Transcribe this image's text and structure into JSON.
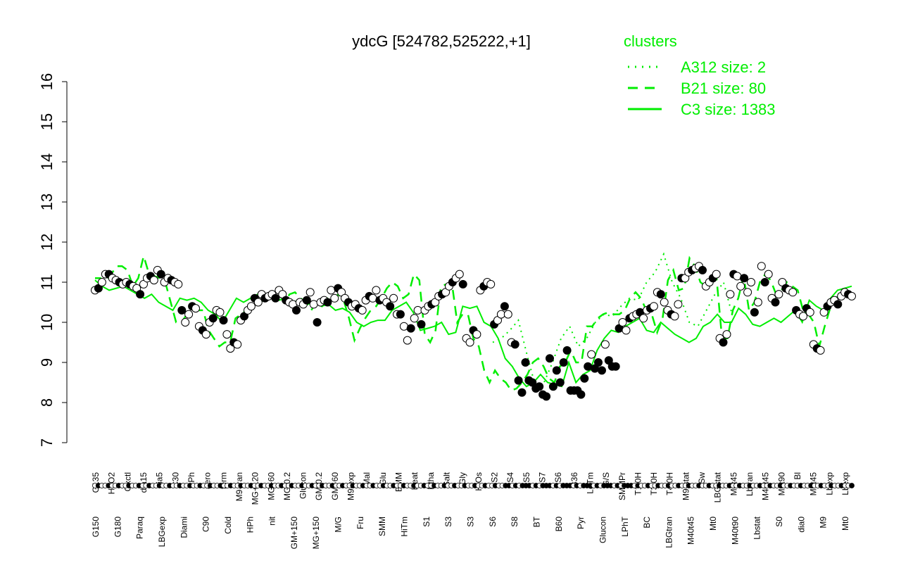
{
  "chart_data": {
    "type": "line",
    "title": "ydcG [524782,525222,+1]",
    "xlabel": "",
    "ylabel": "",
    "ylim": [
      7,
      16
    ],
    "yticks": [
      7,
      8,
      9,
      10,
      11,
      12,
      13,
      14,
      15,
      16
    ],
    "grid": false,
    "legend": {
      "title": "clusters",
      "placement": "top-right",
      "entries": [
        {
          "label": "A312 size: 2",
          "style": "dotted"
        },
        {
          "label": "B21 size: 80",
          "style": "dashed"
        },
        {
          "label": "C3 size: 1383",
          "style": "solid"
        }
      ]
    },
    "colors": {
      "line": "#00ee00",
      "text": "#000000",
      "legend": "#00ee00"
    },
    "x_labels_top": [
      "G135",
      "H2O2",
      "Oxctl",
      "dia15",
      "dia5",
      "C30",
      "LPh",
      "aero",
      "ferm",
      "M9-tran",
      "MG+120",
      "MG+60",
      "MG-0.2",
      "Glucon",
      "GM-0.2",
      "GM+60",
      "M9-exp",
      "Mal",
      "Glu",
      "BMM",
      "Heat",
      "Etha",
      "Salt",
      "Gly",
      "HiOs",
      "S2",
      "S4",
      "S5",
      "S7",
      "S6",
      "B36",
      "LoTm",
      "G/S",
      "SMMPr",
      "T1.0H",
      "T3.0H",
      "T4.0H",
      "M9-stat",
      "Sw",
      "LBGstat",
      "M0t45",
      "Lbtran",
      "M40t45",
      "M0t90",
      "Bl",
      "M0t45",
      "Lbexp",
      "Lbexp"
    ],
    "x_labels_bottom": [
      "G150",
      "G180",
      "Paraq",
      "LBGexp",
      "Diami",
      "C90",
      "Cold",
      "HPh",
      "nit",
      "GM+150",
      "MG+150",
      "M/G",
      "Fru",
      "SMM",
      "HiTm",
      "S1",
      "S3",
      "S3",
      "S6",
      "S8",
      "BT",
      "B60",
      "Pyr",
      "Glucon",
      "LPhT",
      "BC",
      "LBGtran",
      "M40t45",
      "Mt0",
      "M40t90",
      "Lbstat",
      "S0",
      "dia0",
      "M9",
      "Mt0"
    ],
    "point_values": [
      10.8,
      10.85,
      11.0,
      11.2,
      11.2,
      11.1,
      11.05,
      11.0,
      10.95,
      11.0,
      10.95,
      10.9,
      10.85,
      10.7,
      10.95,
      11.1,
      11.15,
      11.05,
      11.3,
      11.2,
      11.0,
      11.1,
      11.05,
      11.0,
      10.95,
      10.3,
      10.0,
      10.2,
      10.4,
      10.35,
      9.9,
      9.8,
      9.7,
      10.0,
      10.1,
      10.3,
      10.25,
      10.05,
      9.7,
      9.35,
      9.5,
      9.45,
      10.05,
      10.15,
      10.3,
      10.4,
      10.6,
      10.5,
      10.7,
      10.6,
      10.65,
      10.7,
      10.6,
      10.8,
      10.7,
      10.55,
      10.5,
      10.45,
      10.3,
      10.5,
      10.45,
      10.55,
      10.75,
      10.45,
      10.0,
      10.5,
      10.55,
      10.5,
      10.8,
      10.6,
      10.85,
      10.75,
      10.6,
      10.5,
      10.4,
      10.45,
      10.35,
      10.3,
      10.55,
      10.65,
      10.6,
      10.8,
      10.55,
      10.6,
      10.5,
      10.4,
      10.6,
      10.2,
      10.2,
      9.9,
      9.55,
      9.85,
      10.1,
      10.3,
      9.95,
      10.3,
      10.4,
      10.45,
      10.5,
      10.65,
      10.7,
      10.75,
      10.9,
      11.0,
      11.1,
      11.2,
      10.95,
      9.6,
      9.5,
      9.8,
      9.7,
      10.8,
      10.9,
      11.0,
      10.95,
      9.95,
      10.05,
      10.2,
      10.4,
      10.2,
      9.5,
      9.45,
      8.55,
      8.25,
      9.0,
      8.55,
      8.5,
      8.35,
      8.4,
      8.2,
      8.15,
      9.1,
      8.4,
      8.8,
      8.5,
      9.0,
      9.3,
      8.3,
      8.3,
      8.3,
      8.2,
      8.6,
      8.9,
      9.2,
      8.85,
      9.0,
      8.8,
      9.45,
      9.05,
      8.9,
      8.9,
      9.85,
      10.0,
      9.8,
      10.1,
      10.15,
      10.2,
      10.25,
      10.1,
      10.3,
      10.35,
      10.4,
      10.75,
      10.7,
      10.5,
      10.3,
      10.2,
      10.15,
      10.45,
      11.1,
      11.1,
      11.25,
      11.3,
      11.35,
      11.4,
      11.3,
      10.9,
      11.0,
      11.1,
      11.2,
      9.6,
      9.5,
      9.7,
      10.7,
      11.2,
      11.15,
      10.9,
      11.1,
      10.75,
      11.0,
      10.25,
      10.5,
      11.4,
      11.0,
      11.2,
      10.6,
      10.5,
      10.7,
      11.0,
      10.85,
      10.8,
      10.75,
      10.3,
      10.2,
      10.15,
      10.35,
      10.25,
      9.45,
      9.35,
      9.3,
      10.25,
      10.4,
      10.5,
      10.55,
      10.45,
      10.65,
      10.75,
      10.7,
      10.65
    ],
    "series": [
      {
        "name": "C3 size: 1383",
        "style": "solid",
        "values": [
          11.05,
          10.9,
          10.8,
          10.85,
          10.9,
          10.8,
          10.7,
          10.6,
          10.7,
          10.5,
          10.4,
          10.3,
          10.6,
          10.55,
          10.6,
          10.5,
          10.3,
          10.2,
          10.0,
          10.3,
          10.6,
          10.5,
          10.6,
          10.7,
          10.7,
          10.6,
          10.55,
          10.6,
          10.5,
          10.55,
          10.45,
          10.5,
          10.4,
          10.45,
          10.3,
          10.35,
          10.25,
          10.0,
          9.9,
          10.0,
          10.05,
          10.05,
          10.3,
          10.4,
          10.5,
          10.25,
          9.8,
          9.85,
          9.9,
          10.0,
          9.7,
          9.75,
          10.4,
          10.35,
          10.4,
          10.0,
          9.9,
          9.6,
          9.1,
          8.9,
          8.6,
          8.4,
          8.5,
          8.7,
          8.5,
          8.45,
          8.4,
          9.0,
          8.5,
          8.7,
          8.8,
          9.3,
          9.6,
          9.8,
          9.75,
          9.9,
          10.0,
          10.1,
          9.8,
          9.75,
          10.0,
          9.85,
          9.7,
          9.6,
          9.5,
          9.6,
          9.9,
          10.0,
          10.2,
          10.0,
          10.0,
          10.35,
          10.2,
          9.95,
          9.9,
          10.0,
          10.1,
          10.0,
          10.15,
          10.3,
          10.0,
          10.55,
          10.4,
          10.3,
          10.6,
          10.8,
          10.85,
          10.9
        ]
      },
      {
        "name": "B21 size: 80",
        "style": "dashed",
        "values": [
          11.1,
          11.1,
          11.0,
          11.2,
          11.4,
          11.4,
          11.3,
          10.9,
          11.1,
          11.65,
          11.2,
          11.15,
          11.1,
          11.0,
          10.5,
          10.0,
          10.0,
          10.2,
          10.3,
          10.3,
          10.3,
          9.8,
          9.6,
          9.4,
          9.5,
          9.5,
          10.1,
          10.2,
          10.3,
          10.5,
          10.6,
          10.5,
          10.6,
          10.7,
          10.75,
          10.5,
          10.7,
          10.75,
          10.6,
          10.5,
          10.3,
          10.5,
          10.4,
          10.6,
          10.55,
          10.7,
          10.55,
          10.1,
          9.55,
          9.85,
          10.1,
          10.3,
          10.4,
          10.6,
          10.85,
          11.0,
          10.9,
          10.6,
          10.7,
          11.2,
          11.05,
          9.7,
          9.5,
          9.8,
          10.9,
          10.95,
          11.0,
          10.0,
          10.2,
          10.2,
          9.6,
          9.4,
          8.8,
          8.5,
          8.8,
          8.6,
          8.5,
          8.3,
          8.35,
          8.5,
          8.7,
          9.0,
          9.1,
          8.9,
          8.6,
          8.5,
          8.9,
          9.0,
          9.3,
          9.0,
          9.0,
          9.9,
          9.9,
          10.1,
          10.2,
          10.25,
          10.2,
          10.2,
          10.3,
          10.6,
          10.75,
          10.6,
          10.3,
          10.2,
          9.75,
          10.1,
          11.05,
          11.3,
          10.8,
          10.85,
          11.6,
          11.4,
          11.0,
          10.9,
          11.0,
          11.1,
          9.6,
          9.6,
          10.3,
          10.6,
          11.15,
          10.3,
          10.5,
          11.0,
          11.2,
          11.05,
          10.7,
          10.8,
          11.0,
          10.9,
          10.8,
          10.3,
          10.2,
          10.0,
          9.4,
          9.9,
          10.35,
          10.6,
          10.7,
          10.75,
          10.7
        ]
      },
      {
        "name": "A312 size: 2",
        "style": "dotted",
        "values": [
          9.5,
          9.6,
          9.8,
          10.05,
          9.2,
          8.4,
          8.5,
          9.0,
          9.6,
          9.9,
          9.4,
          9.6,
          10.0,
          10.2,
          10.15,
          10.4,
          10.6,
          10.55,
          11.0,
          11.25,
          11.7,
          11.0,
          10.6,
          10.0,
          9.9,
          10.3,
          10.7,
          11.0,
          10.2
        ]
      }
    ]
  }
}
